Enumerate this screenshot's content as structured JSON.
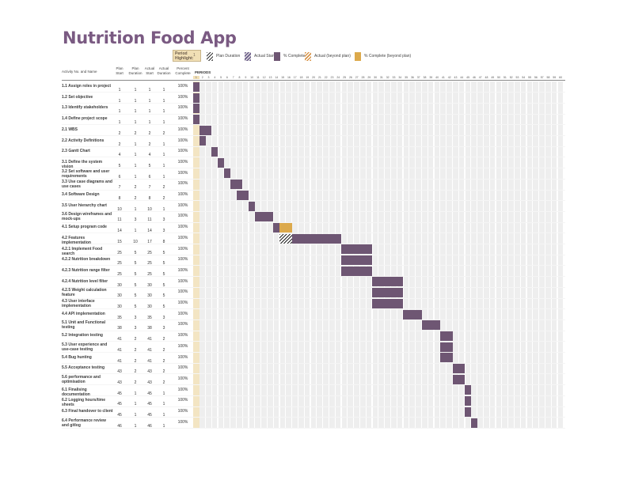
{
  "title": "Nutrition Food App",
  "highlight": {
    "label": "Period Highlight:",
    "value": "1"
  },
  "legend": [
    {
      "label": "Plan Duration",
      "icon": "plan-duration-swatch"
    },
    {
      "label": "Actual Start",
      "icon": "actual-start-swatch"
    },
    {
      "label": "% Complete",
      "icon": "percent-complete-swatch"
    },
    {
      "label": "Actual (beyond plan)",
      "icon": "actual-beyond-swatch"
    },
    {
      "label": "% Complete (beyond plan)",
      "icon": "percent-beyond-swatch"
    }
  ],
  "headers": {
    "activity": "Activity No. and Name",
    "plan_start": "Plan Start",
    "plan_duration": "Plan Duration",
    "actual_start": "Actual Start",
    "actual_duration": "Actual Duration",
    "percent": "Percent Complete",
    "periods": "PERIODS"
  },
  "colors": {
    "complete": "#6e5673",
    "highlight": "#f1dfb5",
    "beyond": "#dca94b",
    "title": "#7a5a82"
  },
  "chart_data": {
    "type": "gantt",
    "title": "Nutrition Food App",
    "period_range": [
      1,
      60
    ],
    "highlight_period": 1,
    "tasks": [
      {
        "name": "1.1 Assign roles in project",
        "plan_start": 1,
        "plan_duration": 1,
        "actual_start": 1,
        "actual_duration": 1,
        "percent": "100%"
      },
      {
        "name": "1.2 Set objective",
        "plan_start": 1,
        "plan_duration": 1,
        "actual_start": 1,
        "actual_duration": 1,
        "percent": "100%"
      },
      {
        "name": "1.3 Identify stakeholders",
        "plan_start": 1,
        "plan_duration": 1,
        "actual_start": 1,
        "actual_duration": 1,
        "percent": "100%"
      },
      {
        "name": "1.4 Define project scope",
        "plan_start": 1,
        "plan_duration": 1,
        "actual_start": 1,
        "actual_duration": 1,
        "percent": "100%"
      },
      {
        "name": "2.1 WBS",
        "plan_start": 2,
        "plan_duration": 2,
        "actual_start": 2,
        "actual_duration": 2,
        "percent": "100%"
      },
      {
        "name": "2.2 Activity Definitions",
        "plan_start": 2,
        "plan_duration": 1,
        "actual_start": 2,
        "actual_duration": 1,
        "percent": "100%"
      },
      {
        "name": "2.3 Gantt Chart",
        "plan_start": 4,
        "plan_duration": 1,
        "actual_start": 4,
        "actual_duration": 1,
        "percent": "100%"
      },
      {
        "name": "3.1 Define the system vision",
        "plan_start": 5,
        "plan_duration": 1,
        "actual_start": 5,
        "actual_duration": 1,
        "percent": "100%"
      },
      {
        "name": "3.2 Set software and user requirements",
        "plan_start": 6,
        "plan_duration": 1,
        "actual_start": 6,
        "actual_duration": 1,
        "percent": "100%"
      },
      {
        "name": "3.3 Use case diagrams and use cases",
        "plan_start": 7,
        "plan_duration": 2,
        "actual_start": 7,
        "actual_duration": 2,
        "percent": "100%"
      },
      {
        "name": "3.4 Software Design",
        "plan_start": 8,
        "plan_duration": 2,
        "actual_start": 8,
        "actual_duration": 2,
        "percent": "100%"
      },
      {
        "name": "3.5 User hierarchy chart",
        "plan_start": 10,
        "plan_duration": 1,
        "actual_start": 10,
        "actual_duration": 1,
        "percent": "100%"
      },
      {
        "name": "3.6 Design wireframes and mock-ups",
        "plan_start": 11,
        "plan_duration": 3,
        "actual_start": 11,
        "actual_duration": 3,
        "percent": "100%"
      },
      {
        "name": "4.1 Setup program code",
        "plan_start": 14,
        "plan_duration": 1,
        "actual_start": 14,
        "actual_duration": 3,
        "percent": "100%"
      },
      {
        "name": "4.2 Features implementation",
        "plan_start": 15,
        "plan_duration": 10,
        "actual_start": 17,
        "actual_duration": 8,
        "percent": "100%"
      },
      {
        "name": "4.2.1 Implement Food search",
        "plan_start": 25,
        "plan_duration": 5,
        "actual_start": 25,
        "actual_duration": 5,
        "percent": "100%"
      },
      {
        "name": "4.2.2 Nutrition breakdown",
        "plan_start": 25,
        "plan_duration": 5,
        "actual_start": 25,
        "actual_duration": 5,
        "percent": "100%"
      },
      {
        "name": "4.2.3 Nutrition range filter",
        "plan_start": 25,
        "plan_duration": 5,
        "actual_start": 25,
        "actual_duration": 5,
        "percent": "100%"
      },
      {
        "name": "4.2.4 Nutrition level filter",
        "plan_start": 30,
        "plan_duration": 5,
        "actual_start": 30,
        "actual_duration": 5,
        "percent": "100%"
      },
      {
        "name": "4.2.5 Weight calculation feature",
        "plan_start": 30,
        "plan_duration": 5,
        "actual_start": 30,
        "actual_duration": 5,
        "percent": "100%"
      },
      {
        "name": "4.3 User interface implementation",
        "plan_start": 30,
        "plan_duration": 5,
        "actual_start": 30,
        "actual_duration": 5,
        "percent": "100%"
      },
      {
        "name": "4.4 API implementation",
        "plan_start": 35,
        "plan_duration": 3,
        "actual_start": 35,
        "actual_duration": 3,
        "percent": "100%"
      },
      {
        "name": "5.1 Unit and Functional testing",
        "plan_start": 38,
        "plan_duration": 3,
        "actual_start": 38,
        "actual_duration": 3,
        "percent": "100%"
      },
      {
        "name": "5.2 Integration testing",
        "plan_start": 41,
        "plan_duration": 2,
        "actual_start": 41,
        "actual_duration": 2,
        "percent": "100%"
      },
      {
        "name": "5.3 User experience and use-case testing",
        "plan_start": 41,
        "plan_duration": 2,
        "actual_start": 41,
        "actual_duration": 2,
        "percent": "100%"
      },
      {
        "name": "5.4 Bug hunting",
        "plan_start": 41,
        "plan_duration": 2,
        "actual_start": 41,
        "actual_duration": 2,
        "percent": "100%"
      },
      {
        "name": "5.5 Acceptance testing",
        "plan_start": 43,
        "plan_duration": 2,
        "actual_start": 43,
        "actual_duration": 2,
        "percent": "100%"
      },
      {
        "name": "5.6 performance and optimisation",
        "plan_start": 43,
        "plan_duration": 2,
        "actual_start": 43,
        "actual_duration": 2,
        "percent": "100%"
      },
      {
        "name": "6.1 Finalising documentation",
        "plan_start": 45,
        "plan_duration": 1,
        "actual_start": 45,
        "actual_duration": 1,
        "percent": "100%"
      },
      {
        "name": "6.2 Logging hours/time sheets",
        "plan_start": 45,
        "plan_duration": 1,
        "actual_start": 45,
        "actual_duration": 1,
        "percent": "100%"
      },
      {
        "name": "6.3 Final handover to client",
        "plan_start": 45,
        "plan_duration": 1,
        "actual_start": 45,
        "actual_duration": 1,
        "percent": "100%"
      },
      {
        "name": "6.4 Performance review and gitlog",
        "plan_start": 46,
        "plan_duration": 1,
        "actual_start": 46,
        "actual_duration": 1,
        "percent": "100%"
      }
    ]
  }
}
